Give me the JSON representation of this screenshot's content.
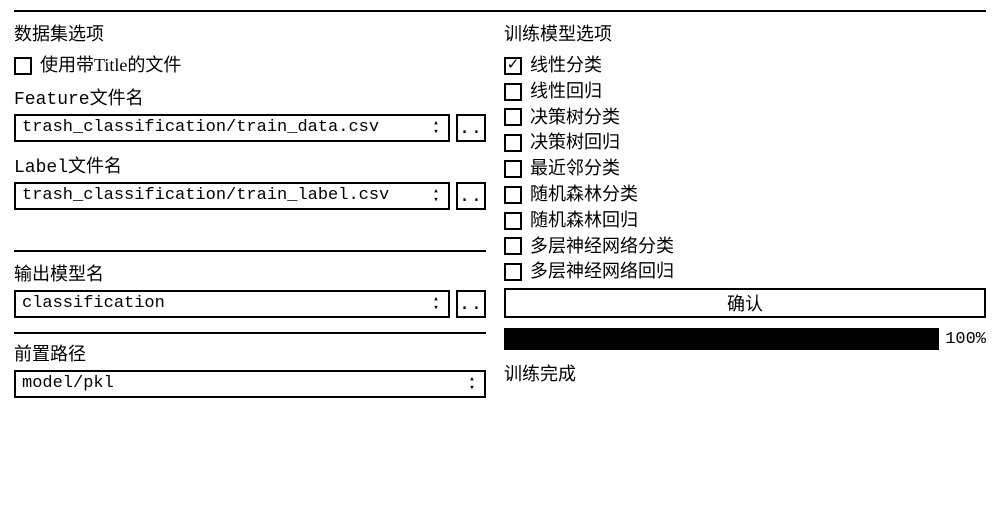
{
  "left": {
    "dataset_title": "数据集选项",
    "use_title_file": {
      "label": "使用带Title的文件",
      "checked": false
    },
    "feature_label": "Feature文件名",
    "feature_value": "trash_classification/train_data.csv",
    "label_label": "Label文件名",
    "label_value": "trash_classification/train_label.csv",
    "output_model_label": "输出模型名",
    "output_model_value": "classification",
    "prefix_label": "前置路径",
    "prefix_value": "model/pkl",
    "browse": ".."
  },
  "right": {
    "train_title": "训练模型选项",
    "models": [
      {
        "label": "线性分类",
        "checked": true
      },
      {
        "label": "线性回归",
        "checked": false
      },
      {
        "label": "决策树分类",
        "checked": false
      },
      {
        "label": "决策树回归",
        "checked": false
      },
      {
        "label": "最近邻分类",
        "checked": false
      },
      {
        "label": "随机森林分类",
        "checked": false
      },
      {
        "label": "随机森林回归",
        "checked": false
      },
      {
        "label": "多层神经网络分类",
        "checked": false
      },
      {
        "label": "多层神经网络回归",
        "checked": false
      }
    ],
    "confirm": "确认",
    "progress_pct": "100%",
    "progress_value": 100,
    "status": "训练完成"
  },
  "style": {
    "border_color": "#000000",
    "bg": "#ffffff",
    "progress_fill": "#000000",
    "font_serif": "SimSun",
    "font_mono": "Courier New"
  }
}
